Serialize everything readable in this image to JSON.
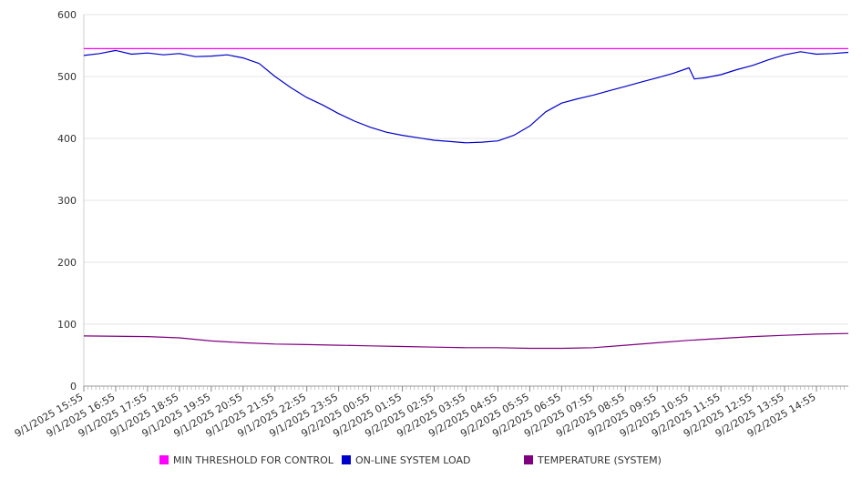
{
  "chart_data": {
    "type": "line",
    "title": "",
    "xlabel": "",
    "ylabel": "",
    "ylim": [
      0,
      600
    ],
    "yticks": [
      0,
      100,
      200,
      300,
      400,
      500,
      600
    ],
    "x_tick_labels": [
      "9/1/2025 15:55",
      "9/1/2025 16:55",
      "9/1/2025 17:55",
      "9/1/2025 18:55",
      "9/1/2025 19:55",
      "9/1/2025 20:55",
      "9/1/2025 21:55",
      "9/1/2025 22:55",
      "9/1/2025 23:55",
      "9/2/2025 00:55",
      "9/2/2025 01:55",
      "9/2/2025 02:55",
      "9/2/2025 03:55",
      "9/2/2025 04:55",
      "9/2/2025 05:55",
      "9/2/2025 06:55",
      "9/2/2025 07:55",
      "9/2/2025 08:55",
      "9/2/2025 09:55",
      "9/2/2025 10:55",
      "9/2/2025 11:55",
      "9/2/2025 12:55",
      "9/2/2025 13:55",
      "9/2/2025 14:55"
    ],
    "x_range": [
      "9/1/2025 15:55",
      "9/2/2025 15:55"
    ],
    "grid": true,
    "legend_position": "bottom",
    "series": [
      {
        "name": "MIN THRESHOLD FOR CONTROL",
        "color": "#ff00ff",
        "points": [
          [
            "9/1/2025 15:55",
            545
          ],
          [
            "9/2/2025 15:55",
            545
          ]
        ]
      },
      {
        "name": "ON-LINE SYSTEM LOAD",
        "color": "#0000cc",
        "points": [
          [
            "9/1/2025 15:55",
            534
          ],
          [
            "9/1/2025 16:25",
            537
          ],
          [
            "9/1/2025 16:55",
            542
          ],
          [
            "9/1/2025 17:25",
            536
          ],
          [
            "9/1/2025 17:55",
            538
          ],
          [
            "9/1/2025 18:25",
            535
          ],
          [
            "9/1/2025 18:55",
            537
          ],
          [
            "9/1/2025 19:25",
            532
          ],
          [
            "9/1/2025 19:55",
            533
          ],
          [
            "9/1/2025 20:25",
            535
          ],
          [
            "9/1/2025 20:55",
            530
          ],
          [
            "9/1/2025 21:25",
            521
          ],
          [
            "9/1/2025 21:55",
            500
          ],
          [
            "9/1/2025 22:25",
            482
          ],
          [
            "9/1/2025 22:55",
            466
          ],
          [
            "9/1/2025 23:25",
            454
          ],
          [
            "9/1/2025 23:55",
            440
          ],
          [
            "9/2/2025 00:25",
            428
          ],
          [
            "9/2/2025 00:55",
            418
          ],
          [
            "9/2/2025 01:25",
            410
          ],
          [
            "9/2/2025 01:55",
            405
          ],
          [
            "9/2/2025 02:25",
            401
          ],
          [
            "9/2/2025 02:55",
            397
          ],
          [
            "9/2/2025 03:25",
            395
          ],
          [
            "9/2/2025 03:55",
            393
          ],
          [
            "9/2/2025 04:25",
            394
          ],
          [
            "9/2/2025 04:55",
            396
          ],
          [
            "9/2/2025 05:25",
            405
          ],
          [
            "9/2/2025 05:55",
            420
          ],
          [
            "9/2/2025 06:25",
            443
          ],
          [
            "9/2/2025 06:55",
            457
          ],
          [
            "9/2/2025 07:25",
            464
          ],
          [
            "9/2/2025 07:55",
            470
          ],
          [
            "9/2/2025 08:25",
            477
          ],
          [
            "9/2/2025 08:55",
            484
          ],
          [
            "9/2/2025 09:25",
            491
          ],
          [
            "9/2/2025 09:55",
            498
          ],
          [
            "9/2/2025 10:25",
            505
          ],
          [
            "9/2/2025 10:55",
            514
          ],
          [
            "9/2/2025 11:05",
            496
          ],
          [
            "9/2/2025 11:25",
            498
          ],
          [
            "9/2/2025 11:55",
            503
          ],
          [
            "9/2/2025 12:25",
            511
          ],
          [
            "9/2/2025 12:55",
            518
          ],
          [
            "9/2/2025 13:25",
            527
          ],
          [
            "9/2/2025 13:55",
            535
          ],
          [
            "9/2/2025 14:25",
            540
          ],
          [
            "9/2/2025 14:55",
            536
          ],
          [
            "9/2/2025 15:25",
            537
          ],
          [
            "9/2/2025 15:55",
            539
          ]
        ]
      },
      {
        "name": "TEMPERATURE (SYSTEM)",
        "color": "#800080",
        "points": [
          [
            "9/1/2025 15:55",
            81
          ],
          [
            "9/1/2025 17:55",
            80
          ],
          [
            "9/1/2025 18:55",
            78
          ],
          [
            "9/1/2025 19:55",
            73
          ],
          [
            "9/1/2025 20:55",
            70
          ],
          [
            "9/1/2025 21:55",
            68
          ],
          [
            "9/1/2025 22:55",
            67
          ],
          [
            "9/1/2025 23:55",
            66
          ],
          [
            "9/2/2025 00:55",
            65
          ],
          [
            "9/2/2025 01:55",
            64
          ],
          [
            "9/2/2025 02:55",
            63
          ],
          [
            "9/2/2025 03:55",
            62
          ],
          [
            "9/2/2025 04:55",
            62
          ],
          [
            "9/2/2025 05:55",
            61
          ],
          [
            "9/2/2025 06:55",
            61
          ],
          [
            "9/2/2025 07:55",
            62
          ],
          [
            "9/2/2025 08:55",
            66
          ],
          [
            "9/2/2025 09:55",
            70
          ],
          [
            "9/2/2025 10:55",
            74
          ],
          [
            "9/2/2025 11:55",
            77
          ],
          [
            "9/2/2025 12:55",
            80
          ],
          [
            "9/2/2025 13:55",
            82
          ],
          [
            "9/2/2025 14:55",
            84
          ],
          [
            "9/2/2025 15:55",
            85
          ]
        ]
      }
    ]
  }
}
